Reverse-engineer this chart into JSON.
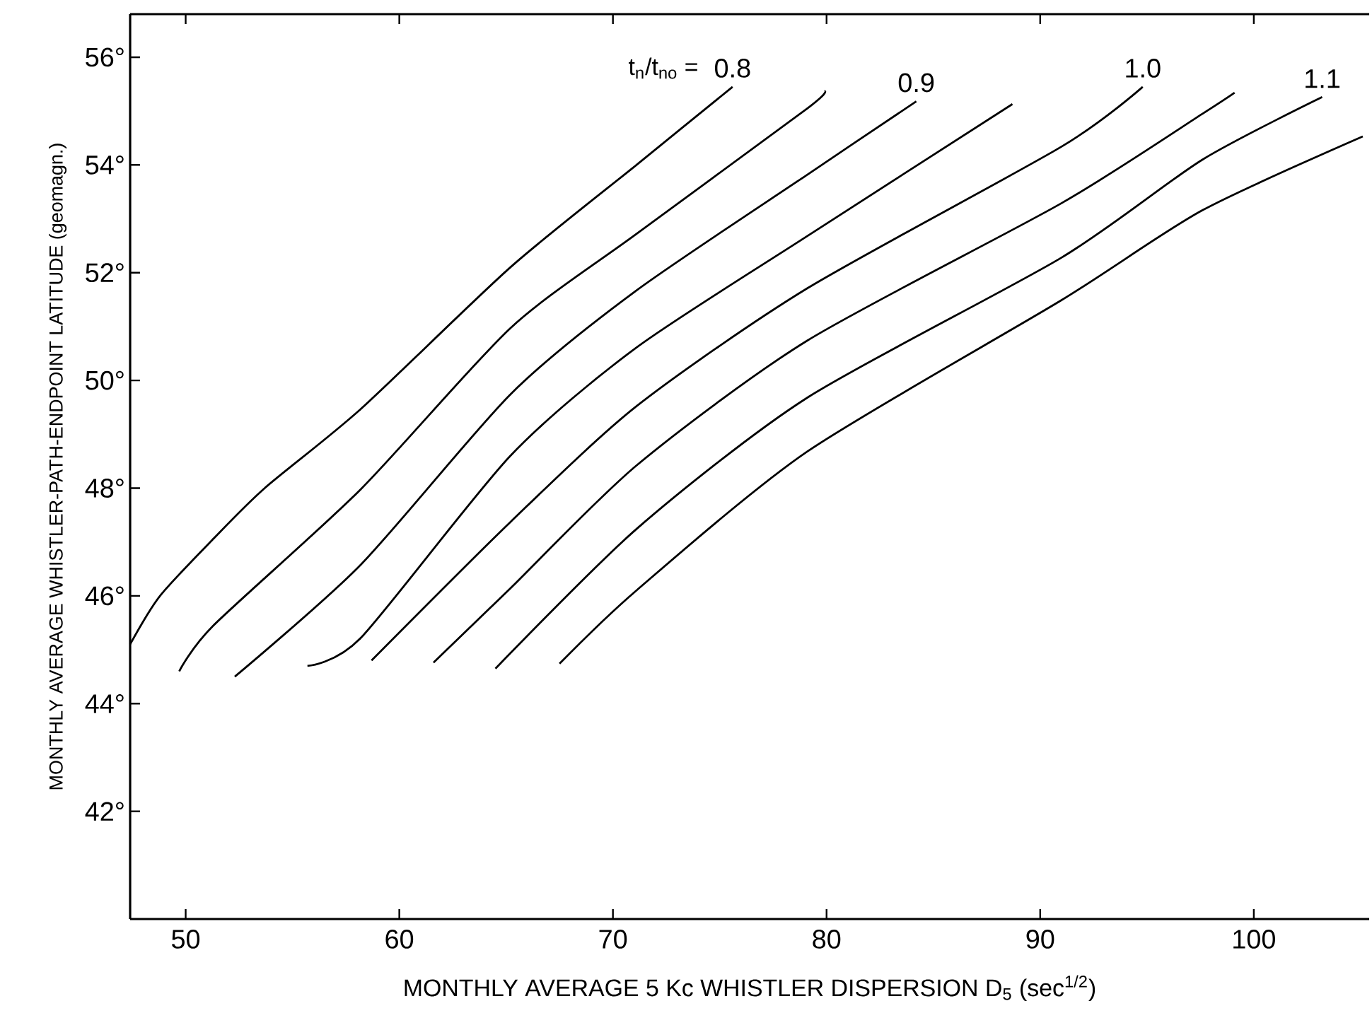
{
  "chart_data": {
    "type": "line",
    "xlabel": "MONTHLY AVERAGE 5 Kc WHISTLER DISPERSION D$_{5}$ (sec$^{1/2}$)",
    "ylabel": "MONTHLY AVERAGE WHISTLER-PATH-ENDPOINT LATITUDE (geomagn.)",
    "legend_title": "t$_{n}$/t$_{no}$ =",
    "xlim": [
      47.4,
      105.4
    ],
    "ylim": [
      40,
      56.8
    ],
    "xticks": [
      50,
      60,
      70,
      80,
      90,
      100
    ],
    "yticks": [
      {
        "value": 42,
        "label": "42°"
      },
      {
        "value": 44,
        "label": "44°"
      },
      {
        "value": 46,
        "label": "46°"
      },
      {
        "value": 48,
        "label": "48°"
      },
      {
        "value": 50,
        "label": "50°"
      },
      {
        "value": 52,
        "label": "52°"
      },
      {
        "value": 54,
        "label": "54°"
      },
      {
        "value": 56,
        "label": "56°"
      }
    ],
    "line_style": "solid",
    "marker": "none",
    "grid": false,
    "series": [
      {
        "name": "0.8",
        "color": "#000000",
        "x": [
          47.4,
          48.8,
          51.3,
          53.7,
          58.2,
          65.2,
          71.1,
          75.6
        ],
        "values": [
          45.1,
          46.0,
          47.06,
          48.0,
          49.47,
          52.1,
          54.0,
          55.45
        ]
      },
      {
        "color": "#000000",
        "x": [
          49.7,
          51.3,
          58.2,
          65.2,
          71.1,
          79.1,
          79.9
        ],
        "values": [
          44.6,
          45.45,
          47.98,
          50.97,
          52.72,
          55.05,
          55.37
        ]
      },
      {
        "name": "0.9",
        "color": "#000000",
        "x": [
          52.3,
          58.2,
          65.2,
          71.1,
          79.1,
          84.2
        ],
        "values": [
          44.5,
          46.58,
          49.74,
          51.67,
          53.82,
          55.18
        ]
      },
      {
        "color": "#000000",
        "x": [
          55.7,
          58.2,
          65.2,
          71.1,
          79.1,
          88.7
        ],
        "values": [
          44.7,
          45.22,
          48.6,
          50.61,
          52.68,
          55.13
        ]
      },
      {
        "name": "1.0",
        "color": "#000000",
        "x": [
          58.7,
          65.2,
          71.1,
          79.1,
          91.0,
          94.8
        ],
        "values": [
          44.8,
          47.37,
          49.52,
          51.71,
          54.34,
          55.45
        ]
      },
      {
        "color": "#000000",
        "x": [
          61.6,
          65.2,
          71.1,
          79.1,
          91.0,
          97.6,
          99.1
        ],
        "values": [
          44.76,
          46.14,
          48.42,
          50.74,
          53.29,
          54.95,
          55.34
        ]
      },
      {
        "name": "1.1",
        "color": "#000000",
        "x": [
          64.5,
          71.1,
          79.1,
          91.0,
          97.6,
          103.2
        ],
        "values": [
          44.65,
          47.24,
          49.68,
          52.28,
          54.1,
          55.26
        ]
      },
      {
        "color": "#000000",
        "x": [
          67.5,
          71.1,
          79.1,
          91.0,
          97.6,
          105.1
        ],
        "values": [
          44.74,
          46.1,
          48.68,
          51.49,
          53.16,
          54.53
        ]
      }
    ]
  }
}
